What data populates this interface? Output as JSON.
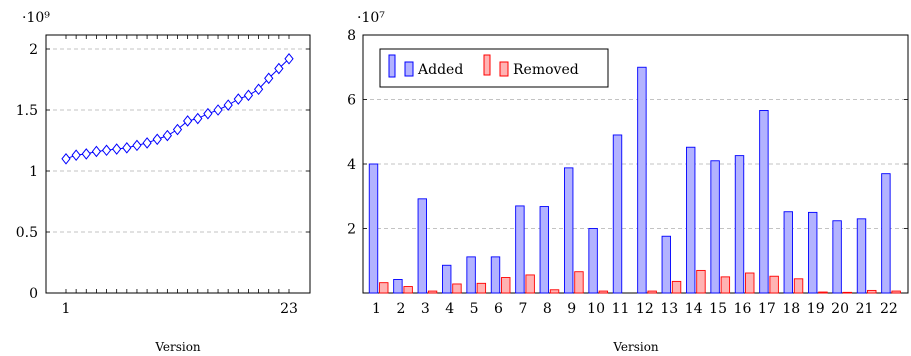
{
  "chart_data": [
    {
      "type": "line",
      "xlabel": "Version",
      "ylabel": "",
      "y_exponent": "·10⁹",
      "xlim": [
        1,
        23
      ],
      "ylim": [
        0,
        2
      ],
      "x_ticks": [
        "1",
        "23"
      ],
      "y_ticks": [
        {
          "value": 0,
          "label": "0"
        },
        {
          "value": 0.5,
          "label": "0.5"
        },
        {
          "value": 1,
          "label": "1"
        },
        {
          "value": 1.5,
          "label": "1.5"
        },
        {
          "value": 2,
          "label": "2"
        }
      ],
      "grid": "horizontal dashed",
      "marker": "diamond",
      "color": "#0000ff",
      "x": [
        1,
        2,
        3,
        4,
        5,
        6,
        7,
        8,
        9,
        10,
        11,
        12,
        13,
        14,
        15,
        16,
        17,
        18,
        19,
        20,
        21,
        22,
        23
      ],
      "values": [
        1.1,
        1.13,
        1.14,
        1.16,
        1.17,
        1.18,
        1.19,
        1.21,
        1.23,
        1.26,
        1.29,
        1.34,
        1.41,
        1.43,
        1.47,
        1.5,
        1.54,
        1.59,
        1.62,
        1.67,
        1.76,
        1.84,
        1.92
      ]
    },
    {
      "type": "bar",
      "xlabel": "Version",
      "ylabel": "",
      "y_exponent": "·10⁷",
      "ylim": [
        0,
        8
      ],
      "y_ticks": [
        {
          "value": 2,
          "label": "2"
        },
        {
          "value": 4,
          "label": "4"
        },
        {
          "value": 6,
          "label": "6"
        },
        {
          "value": 8,
          "label": "8"
        }
      ],
      "grid": "horizontal dashed",
      "legend_position": "top-left",
      "categories": [
        "1",
        "2",
        "3",
        "4",
        "5",
        "6",
        "7",
        "8",
        "9",
        "10",
        "11",
        "12",
        "13",
        "14",
        "15",
        "16",
        "17",
        "18",
        "19",
        "20",
        "21",
        "22"
      ],
      "series": [
        {
          "name": "Added",
          "fill": "#b3b3ff",
          "stroke": "#0000ff",
          "values": [
            4.0,
            0.42,
            2.92,
            0.86,
            1.12,
            1.12,
            2.7,
            2.68,
            3.88,
            2.0,
            4.9,
            7.0,
            1.76,
            4.52,
            4.1,
            4.26,
            5.66,
            2.52,
            2.5,
            2.24,
            2.3,
            3.7
          ]
        },
        {
          "name": "Removed",
          "fill": "#ffb3b3",
          "stroke": "#ff0000",
          "values": [
            0.32,
            0.2,
            0.06,
            0.28,
            0.3,
            0.48,
            0.56,
            0.1,
            0.66,
            0.06,
            0.0,
            0.06,
            0.36,
            0.7,
            0.5,
            0.62,
            0.52,
            0.44,
            0.03,
            0.02,
            0.08,
            0.06
          ]
        }
      ]
    }
  ]
}
